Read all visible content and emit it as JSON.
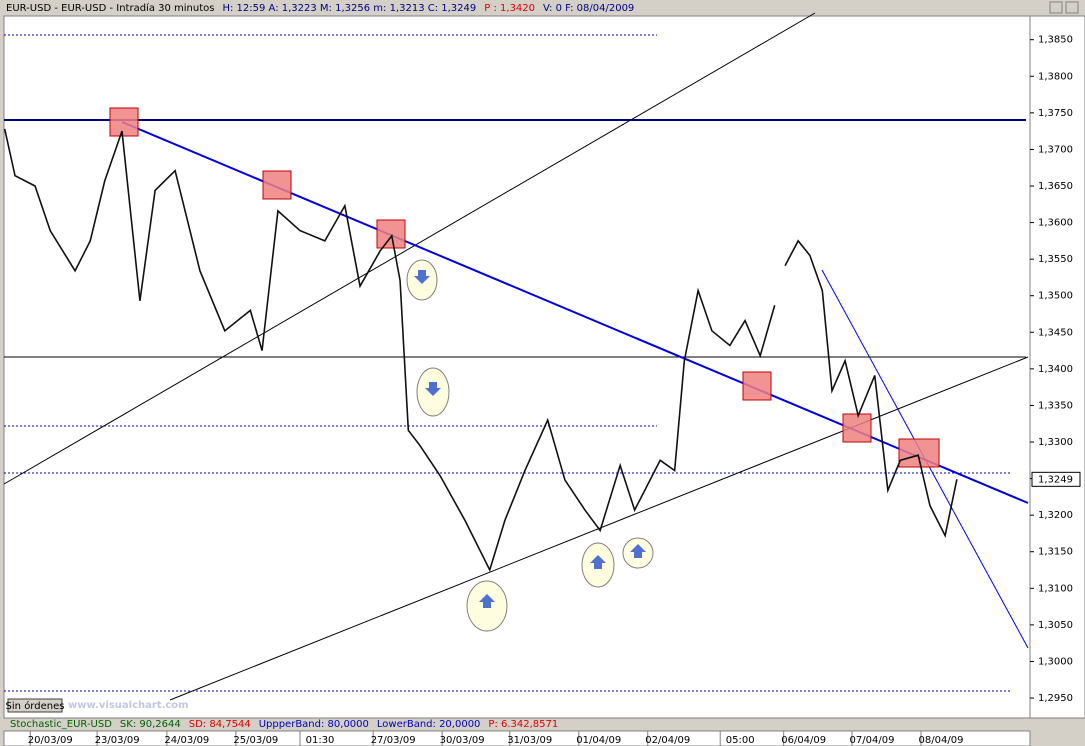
{
  "chart_data": {
    "type": "line",
    "header": [
      {
        "text": "EUR-USD - EUR-USD - Intradía 30 minutos",
        "color": "#000000"
      },
      {
        "text": "H: 12:59  A: 1,3223  M: 1,3256  m: 1,3213  C: 1,3249",
        "color": "#000080"
      },
      {
        "text": "P : 1,3420",
        "color": "#e00000"
      },
      {
        "text": "V: 0  F: 08/04/2009",
        "color": "#000080"
      }
    ],
    "last_price_label": "1,3249",
    "order_button": "Sin órdenes",
    "watermark": "www.visualchart.com",
    "indicator": [
      {
        "text": "Stochastic_EUR-USD",
        "color": "#006000"
      },
      {
        "text": "SK: 90,2644",
        "color": "#006000"
      },
      {
        "text": "SD: 84,7544",
        "color": "#e00000"
      },
      {
        "text": "UppperBand: 80,0000",
        "color": "#0000c0"
      },
      {
        "text": "LowerBand: 20,0000",
        "color": "#0000c0"
      },
      {
        "text": "P: 6.342,8571",
        "color": "#e00000"
      }
    ],
    "x": [
      0.01,
      0.16,
      0.45,
      0.67,
      1.03,
      1.25,
      1.46,
      1.71,
      1.97,
      2.19,
      2.48,
      2.84,
      3.2,
      3.57,
      3.74,
      3.97,
      4.29,
      4.65,
      4.94,
      5.16,
      5.45,
      5.62,
      5.74,
      5.86,
      6.03,
      6.32,
      6.68,
      7.04,
      7.26,
      7.55,
      7.88,
      8.13,
      8.42,
      8.64,
      8.93,
      9.14,
      9.51,
      9.72,
      9.86,
      10.06,
      10.26,
      10.52,
      10.74,
      10.96,
      11.17,
      11.25,
      11.32,
      11.51,
      11.68,
      11.86,
      12.0,
      12.19,
      12.38,
      12.62,
      12.81,
      12.99,
      13.25,
      13.42,
      13.64,
      13.81
    ],
    "series": [
      {
        "color": "#111111",
        "values": [
          1.3728,
          1.3664,
          1.365,
          1.3589,
          1.3534,
          1.3575,
          1.3657,
          1.3725,
          1.3493,
          1.3644,
          1.3671,
          1.3534,
          1.3452,
          1.348,
          1.3425,
          1.3616,
          1.3589,
          1.3575,
          1.3623,
          1.3513,
          1.3561,
          1.3582,
          1.3521,
          1.3316,
          1.3295,
          1.3254,
          1.3193,
          1.3125,
          1.3193,
          1.3261,
          1.333,
          1.3248,
          1.3207,
          1.3179,
          1.3268,
          1.3207,
          1.3275,
          1.3261,
          1.3411,
          1.3507,
          1.3452,
          1.3432,
          1.3466,
          1.3418,
          1.3487,
          null,
          1.3541,
          1.3575,
          1.3555,
          1.3507,
          1.337,
          1.3411,
          1.3336,
          1.3391,
          1.3234,
          1.3275,
          1.3282,
          1.3213,
          1.3172,
          1.3249
        ]
      }
    ],
    "xlim": [
      0,
      14.87
    ],
    "xticks": [
      {
        "value": 0.67,
        "label": "20/03/09"
      },
      {
        "value": 1.64,
        "label": "23/03/09"
      },
      {
        "value": 2.65,
        "label": "24/03/09"
      },
      {
        "value": 3.65,
        "label": "25/03/09"
      },
      {
        "value": 4.58,
        "label": "01:30"
      },
      {
        "value": 5.64,
        "label": "27/03/09"
      },
      {
        "value": 6.64,
        "label": "30/03/09"
      },
      {
        "value": 7.62,
        "label": "31/03/09"
      },
      {
        "value": 8.62,
        "label": "01/04/09"
      },
      {
        "value": 9.62,
        "label": "02/04/09"
      },
      {
        "value": 10.67,
        "label": "05:00"
      },
      {
        "value": 11.59,
        "label": "06/04/09"
      },
      {
        "value": 12.58,
        "label": "07/04/09"
      },
      {
        "value": 13.58,
        "label": "08/04/09"
      }
    ],
    "ylim": [
      1.29227,
      1.38824
    ],
    "yticks": [
      {
        "value": 1.385,
        "label": "1,3850"
      },
      {
        "value": 1.38,
        "label": "1,3800"
      },
      {
        "value": 1.375,
        "label": "1,3750"
      },
      {
        "value": 1.37,
        "label": "1,3700"
      },
      {
        "value": 1.365,
        "label": "1,3650"
      },
      {
        "value": 1.36,
        "label": "1,3600"
      },
      {
        "value": 1.355,
        "label": "1,3550"
      },
      {
        "value": 1.35,
        "label": "1,3500"
      },
      {
        "value": 1.345,
        "label": "1,3450"
      },
      {
        "value": 1.34,
        "label": "1,3400"
      },
      {
        "value": 1.335,
        "label": "1,3350"
      },
      {
        "value": 1.33,
        "label": "1,3300"
      },
      {
        "value": 1.325,
        "label": "1,3250"
      },
      {
        "value": 1.32,
        "label": "1,3200"
      },
      {
        "value": 1.315,
        "label": "1,3150"
      },
      {
        "value": 1.31,
        "label": "1,3100"
      },
      {
        "value": 1.305,
        "label": "1,3050"
      },
      {
        "value": 1.3,
        "label": "1,3000"
      },
      {
        "value": 1.295,
        "label": "1,2950"
      }
    ]
  }
}
